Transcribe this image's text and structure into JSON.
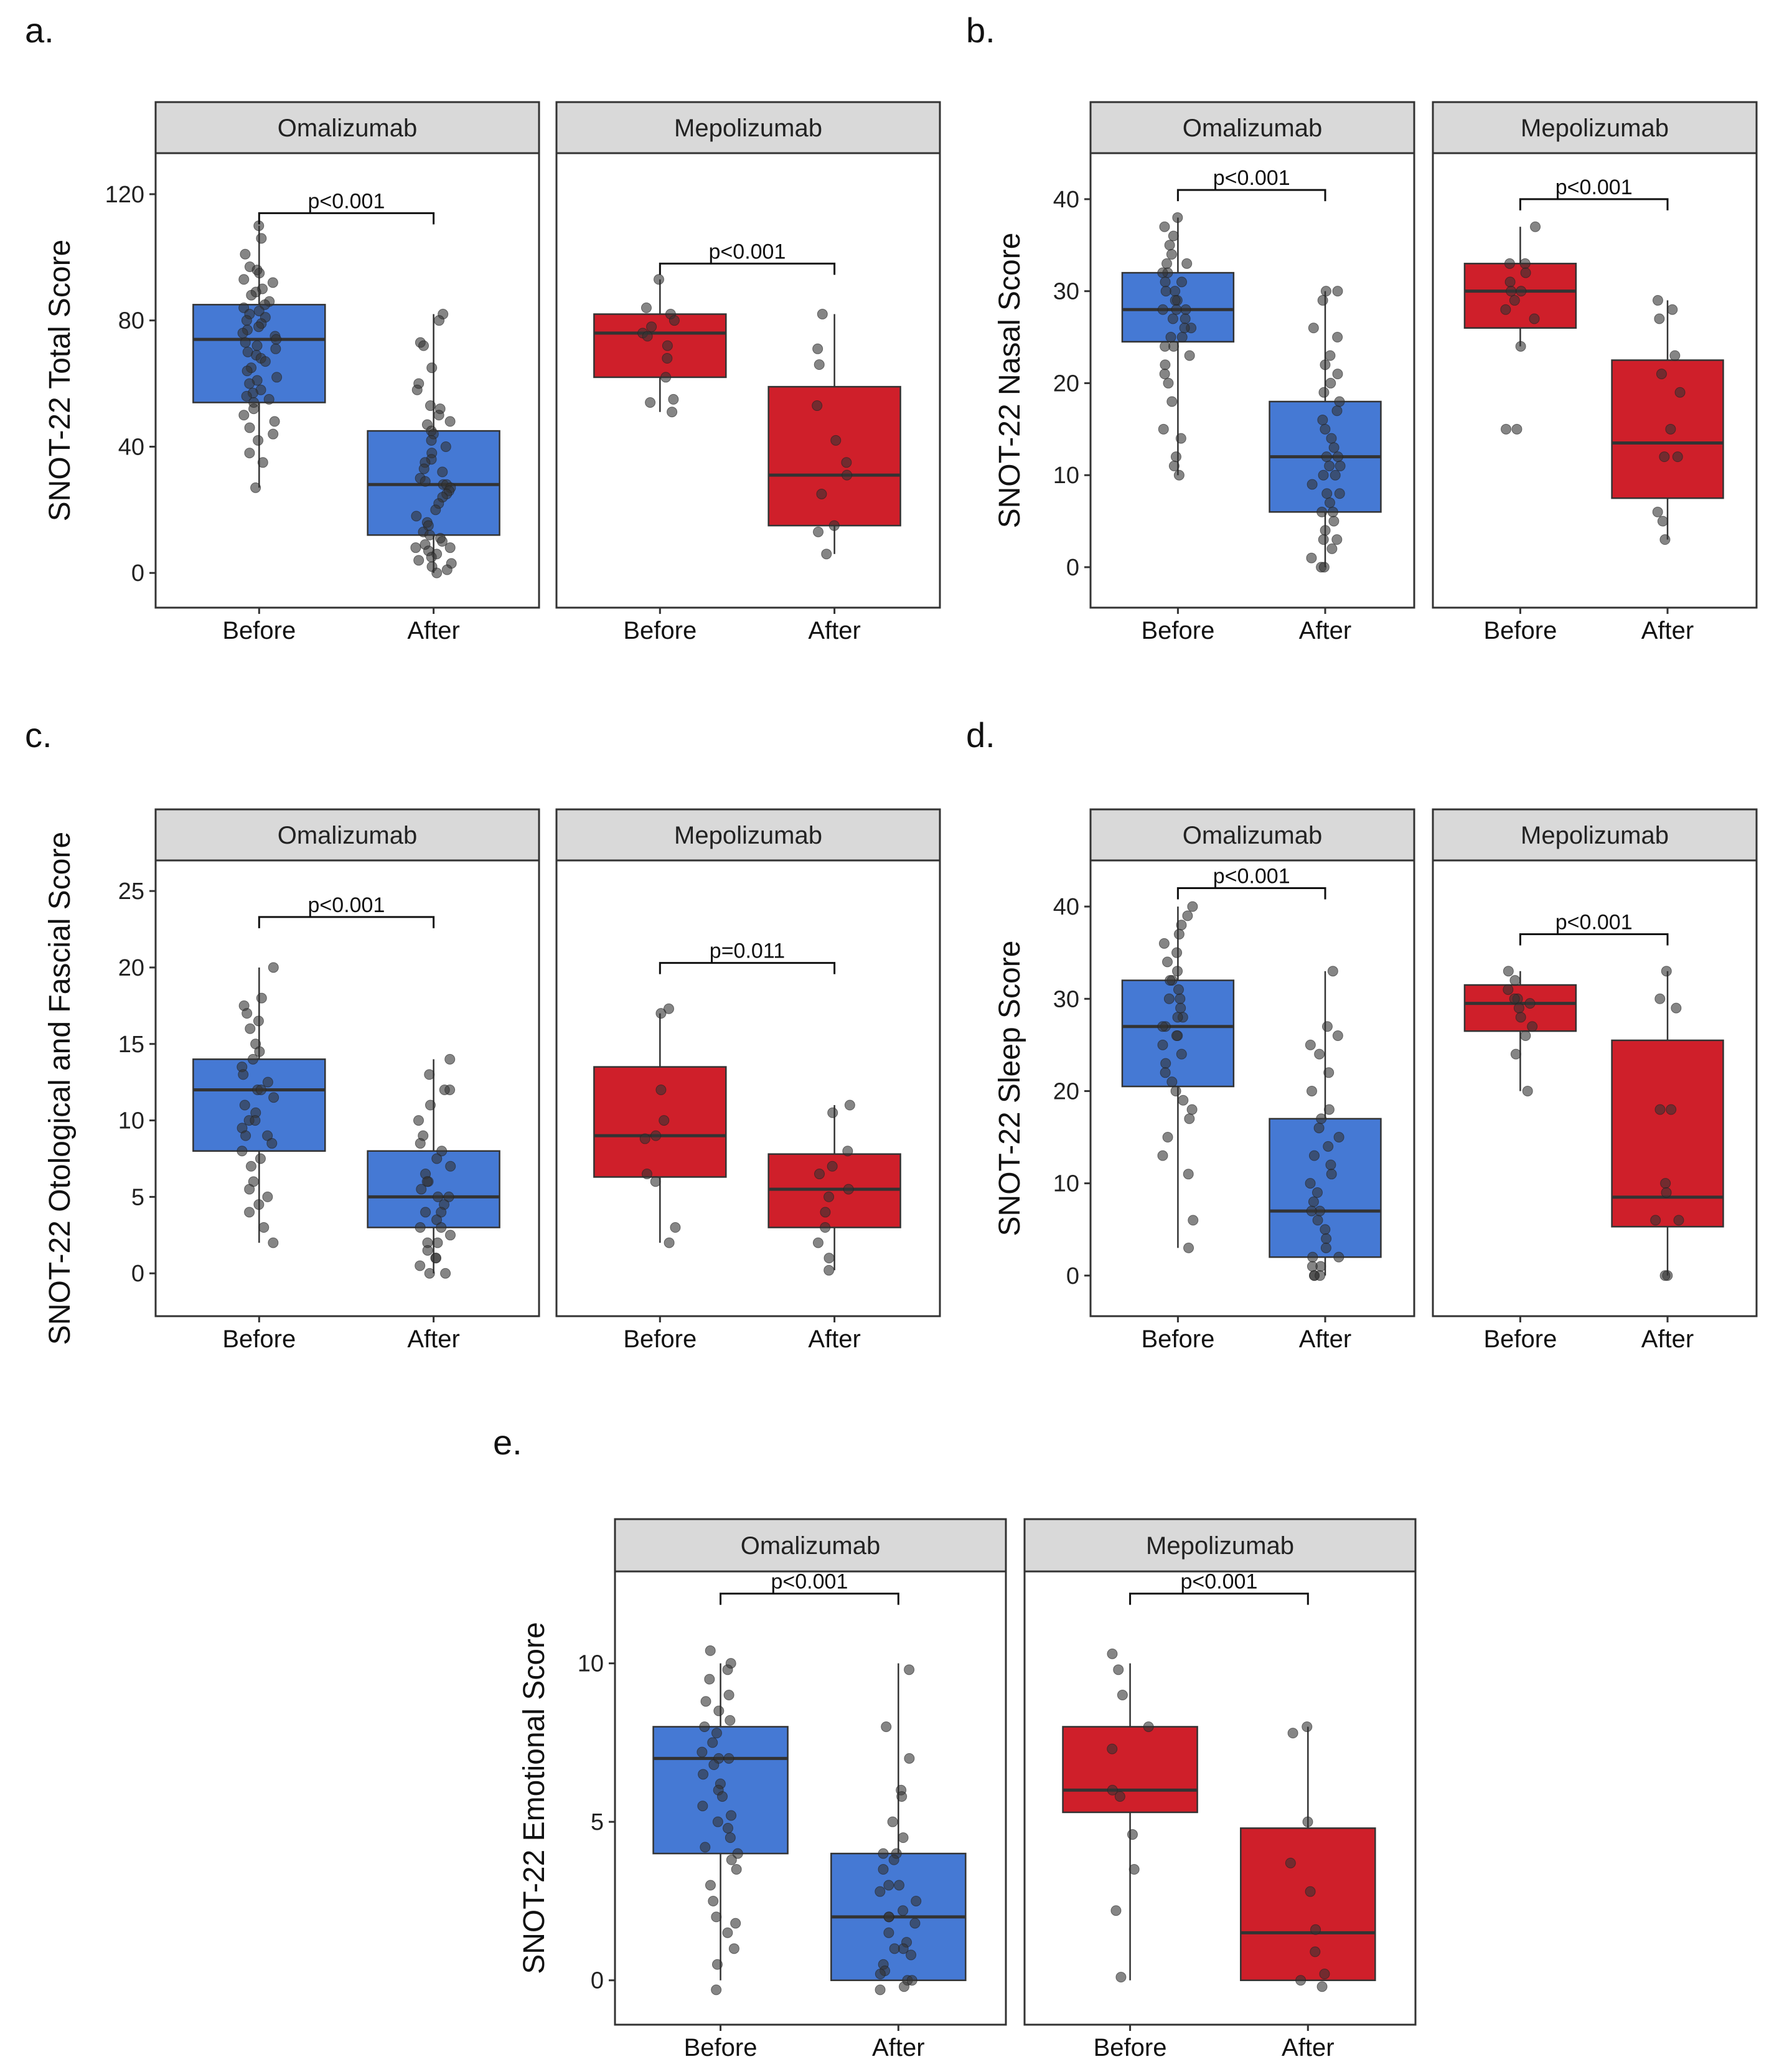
{
  "figure": {
    "colors": {
      "blue": "#4579d4",
      "red": "#cf1f2a",
      "strip": "#d9d9d9",
      "point": "#333333"
    },
    "x_categories": [
      "Before",
      "After"
    ]
  },
  "chart_data": [
    {
      "id": "a",
      "letter": "a.",
      "type": "box",
      "ylabel": "SNOT-22 Total Score",
      "ylim": [
        -11,
        133
      ],
      "yticks": [
        0,
        40,
        80,
        120
      ],
      "facets": [
        {
          "name": "Omalizumab",
          "color_key": "blue",
          "p_label": "p<0.001",
          "p_y": 114,
          "boxes": [
            {
              "category": "Before",
              "min": 27,
              "q1": 54,
              "median": 74,
              "q3": 85,
              "max": 110,
              "points": [
                110,
                106,
                101,
                97,
                96,
                95,
                93,
                92,
                90,
                89,
                88,
                86,
                85,
                84,
                83,
                82,
                81,
                80,
                79,
                78,
                77,
                76,
                75,
                74,
                73,
                72,
                71,
                70,
                69,
                68,
                67,
                65,
                64,
                62,
                61,
                60,
                58,
                57,
                56,
                55,
                54,
                52,
                50,
                48,
                46,
                44,
                42,
                38,
                35,
                27
              ]
            },
            {
              "category": "After",
              "min": 0,
              "q1": 12,
              "median": 28,
              "q3": 45,
              "max": 82,
              "points": [
                82,
                80,
                73,
                72,
                65,
                60,
                58,
                53,
                52,
                50,
                48,
                47,
                45,
                44,
                42,
                40,
                38,
                36,
                35,
                33,
                32,
                30,
                29,
                28,
                28,
                27,
                26,
                25,
                24,
                22,
                20,
                18,
                16,
                15,
                13,
                12,
                11,
                10,
                9,
                8,
                8,
                7,
                6,
                5,
                4,
                3,
                2,
                1,
                0
              ]
            }
          ]
        },
        {
          "name": "Mepolizumab",
          "color_key": "red",
          "p_label": "p<0.001",
          "p_y": 98,
          "boxes": [
            {
              "category": "Before",
              "min": 51,
              "q1": 62,
              "median": 76,
              "q3": 82,
              "max": 93,
              "points": [
                93,
                84,
                82,
                80,
                78,
                76,
                75,
                72,
                68,
                62,
                55,
                54,
                51
              ]
            },
            {
              "category": "After",
              "min": 6,
              "q1": 15,
              "median": 31,
              "q3": 59,
              "max": 82,
              "points": [
                82,
                71,
                66,
                53,
                42,
                35,
                31,
                25,
                15,
                13,
                6
              ]
            }
          ]
        }
      ]
    },
    {
      "id": "b",
      "letter": "b.",
      "type": "box",
      "ylabel": "SNOT-22 Nasal Score",
      "ylim": [
        -4.4,
        45
      ],
      "yticks": [
        0,
        10,
        20,
        30,
        40
      ],
      "facets": [
        {
          "name": "Omalizumab",
          "color_key": "blue",
          "p_label": "p<0.001",
          "p_y": 41,
          "boxes": [
            {
              "category": "Before",
              "min": 10,
              "q1": 24.5,
              "median": 28,
              "q3": 32,
              "max": 38,
              "points": [
                38,
                37,
                36,
                35,
                34,
                33,
                33,
                32,
                32,
                31,
                31,
                30,
                30,
                29,
                29,
                28,
                28,
                28,
                27,
                27,
                26,
                26,
                25,
                25,
                24,
                24,
                23,
                22,
                21,
                20,
                18,
                15,
                14,
                12,
                11,
                10
              ]
            },
            {
              "category": "After",
              "min": 0,
              "q1": 6,
              "median": 12,
              "q3": 18,
              "max": 30,
              "points": [
                30,
                30,
                29,
                26,
                25,
                23,
                22,
                21,
                20,
                19,
                18,
                17,
                16,
                15,
                14,
                13,
                12,
                12,
                11,
                11,
                10,
                10,
                9,
                8,
                8,
                7,
                6,
                6,
                5,
                4,
                3,
                3,
                2,
                1,
                0,
                0
              ]
            }
          ]
        },
        {
          "name": "Mepolizumab",
          "color_key": "red",
          "p_label": "p<0.001",
          "p_y": 40,
          "boxes": [
            {
              "category": "Before",
              "min": 24,
              "q1": 26,
              "median": 30,
              "q3": 33,
              "max": 37,
              "points": [
                37,
                33,
                33,
                32,
                31,
                30,
                30,
                29,
                28,
                27,
                24,
                15,
                15
              ]
            },
            {
              "category": "After",
              "min": 3,
              "q1": 7.5,
              "median": 13.5,
              "q3": 22.5,
              "max": 29,
              "points": [
                29,
                28,
                27,
                23,
                21,
                19,
                15,
                12,
                12,
                6,
                5,
                3
              ]
            }
          ]
        }
      ]
    },
    {
      "id": "c",
      "letter": "c.",
      "type": "box",
      "ylabel": "SNOT-22 Otological and Fascial Score",
      "ylim": [
        -2.8,
        27
      ],
      "yticks": [
        0,
        5,
        10,
        15,
        20,
        25
      ],
      "facets": [
        {
          "name": "Omalizumab",
          "color_key": "blue",
          "p_label": "p<0.001",
          "p_y": 23.3,
          "boxes": [
            {
              "category": "Before",
              "min": 2,
              "q1": 8,
              "median": 12,
              "q3": 14,
              "max": 20,
              "points": [
                20,
                18,
                17.5,
                17,
                16.5,
                16,
                15,
                14.5,
                14,
                13.5,
                13,
                12.5,
                12,
                12,
                11.5,
                11,
                10.5,
                10,
                10,
                9.5,
                9,
                9,
                8.5,
                8,
                7.5,
                7,
                6,
                5.5,
                5,
                4.5,
                4,
                3,
                2
              ]
            },
            {
              "category": "After",
              "min": 0,
              "q1": 3,
              "median": 5,
              "q3": 8,
              "max": 14,
              "points": [
                14,
                13,
                12,
                12,
                11,
                10,
                9,
                8.5,
                8,
                7.5,
                7,
                6.5,
                6,
                6,
                5.5,
                5,
                5,
                4.5,
                4,
                4,
                3.5,
                3,
                3,
                2.5,
                2,
                2,
                1.5,
                1,
                1,
                0.5,
                0,
                0
              ]
            }
          ]
        },
        {
          "name": "Mepolizumab",
          "color_key": "red",
          "p_label": "p=0.011",
          "p_y": 20.3,
          "boxes": [
            {
              "category": "Before",
              "min": 2,
              "q1": 6.3,
              "median": 9,
              "q3": 13.5,
              "max": 17,
              "points": [
                17.3,
                17,
                12,
                10,
                9,
                8.8,
                6.5,
                6,
                3,
                2
              ]
            },
            {
              "category": "After",
              "min": 0.2,
              "q1": 3,
              "median": 5.5,
              "q3": 7.8,
              "max": 11,
              "points": [
                11,
                10.5,
                8,
                7,
                6.5,
                5.5,
                5,
                4,
                3,
                2,
                1,
                0.2
              ]
            }
          ]
        }
      ]
    },
    {
      "id": "d",
      "letter": "d.",
      "type": "box",
      "ylabel": "SNOT-22 Sleep Score",
      "ylim": [
        -4.4,
        45
      ],
      "yticks": [
        0,
        10,
        20,
        30,
        40
      ],
      "facets": [
        {
          "name": "Omalizumab",
          "color_key": "blue",
          "p_label": "p<0.001",
          "p_y": 42,
          "boxes": [
            {
              "category": "Before",
              "min": 3,
              "q1": 20.5,
              "median": 27,
              "q3": 32,
              "max": 40,
              "points": [
                40,
                39,
                38,
                37,
                36,
                35,
                34,
                33,
                32,
                32,
                31,
                30,
                30,
                29,
                28,
                28,
                27,
                27,
                26,
                26,
                25,
                24,
                23,
                22,
                21,
                20,
                19,
                18,
                17,
                15,
                13,
                11,
                6,
                3
              ]
            },
            {
              "category": "After",
              "min": 0,
              "q1": 2,
              "median": 7,
              "q3": 17,
              "max": 33,
              "points": [
                33,
                27,
                26,
                25,
                24,
                22,
                20,
                18,
                17,
                16,
                15,
                14,
                13,
                12,
                11,
                10,
                9,
                8,
                7,
                7,
                6,
                5,
                4,
                3,
                2,
                2,
                1,
                1,
                0,
                0,
                0
              ]
            }
          ]
        },
        {
          "name": "Mepolizumab",
          "color_key": "red",
          "p_label": "p<0.001",
          "p_y": 37,
          "boxes": [
            {
              "category": "Before",
              "min": 20,
              "q1": 26.5,
              "median": 29.5,
              "q3": 31.5,
              "max": 33,
              "points": [
                33,
                32,
                31,
                30,
                30,
                29.5,
                29,
                28,
                27,
                26,
                24,
                20
              ]
            },
            {
              "category": "After",
              "min": 0,
              "q1": 5.3,
              "median": 8.5,
              "q3": 25.5,
              "max": 33,
              "points": [
                33,
                30,
                29,
                18,
                18,
                10,
                9,
                6,
                6,
                0,
                0
              ]
            }
          ]
        }
      ]
    },
    {
      "id": "e",
      "letter": "e.",
      "type": "box",
      "ylabel": "SNOT-22 Emotional Score",
      "ylim": [
        -1.4,
        12.9
      ],
      "yticks": [
        0,
        5,
        10
      ],
      "facets": [
        {
          "name": "Omalizumab",
          "color_key": "blue",
          "p_label": "p<0.001",
          "p_y": 12.2,
          "boxes": [
            {
              "category": "Before",
              "min": 0,
              "q1": 4,
              "median": 7,
              "q3": 8,
              "max": 10,
              "points": [
                10.4,
                10,
                9.8,
                9.5,
                9,
                8.8,
                8.5,
                8.2,
                8,
                7.8,
                7.5,
                7.2,
                7,
                7,
                6.8,
                6.5,
                6.2,
                6,
                5.8,
                5.5,
                5.2,
                5,
                4.8,
                4.5,
                4.2,
                4,
                3.8,
                3.5,
                3,
                2.5,
                2,
                1.8,
                1.5,
                1,
                0.5,
                -0.3
              ]
            },
            {
              "category": "After",
              "min": 0,
              "q1": 0,
              "median": 2,
              "q3": 4,
              "max": 10,
              "points": [
                9.8,
                8,
                7,
                6,
                5.8,
                5,
                4.5,
                4,
                4,
                3.8,
                3.5,
                3,
                3,
                2.8,
                2.5,
                2.2,
                2,
                2,
                1.8,
                1.5,
                1.2,
                1,
                1,
                0.8,
                0.5,
                0.3,
                0.2,
                0,
                0,
                -0.2,
                -0.3
              ]
            }
          ]
        },
        {
          "name": "Mepolizumab",
          "color_key": "red",
          "p_label": "p<0.001",
          "p_y": 12.2,
          "boxes": [
            {
              "category": "Before",
              "min": 0,
              "q1": 5.3,
              "median": 6,
              "q3": 8,
              "max": 10,
              "points": [
                10.3,
                9.8,
                9,
                8,
                7.3,
                6,
                5.8,
                4.6,
                3.5,
                2.2,
                0.1
              ]
            },
            {
              "category": "After",
              "min": 0,
              "q1": 0,
              "median": 1.5,
              "q3": 4.8,
              "max": 8,
              "points": [
                8,
                7.8,
                5,
                3.7,
                2.8,
                1.6,
                0.9,
                0.2,
                0,
                -0.2
              ]
            }
          ]
        }
      ]
    }
  ]
}
